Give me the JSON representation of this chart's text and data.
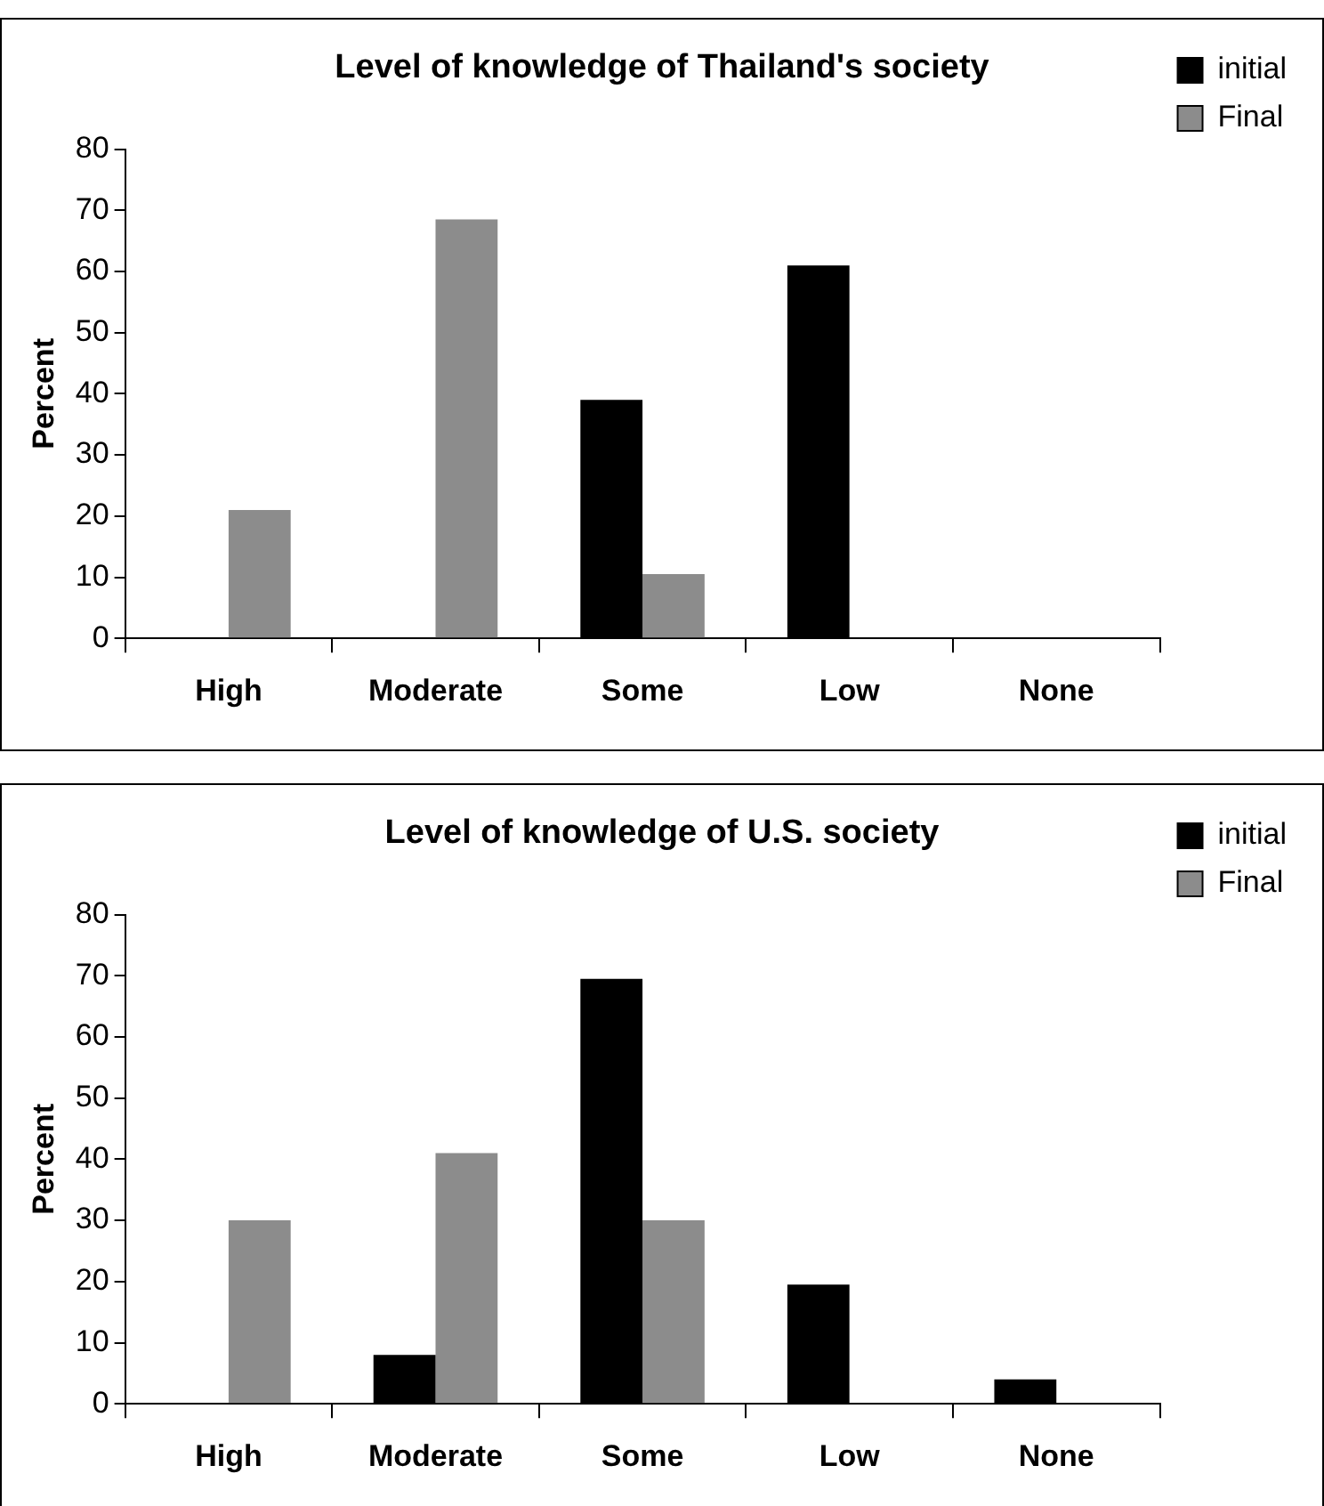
{
  "chart_data": [
    {
      "type": "bar",
      "title": "Level of knowledge of Thailand's society",
      "ylabel": "Percent",
      "categories": [
        "High",
        "Moderate",
        "Some",
        "Low",
        "None"
      ],
      "series": [
        {
          "name": "initial",
          "color": "#000000",
          "values": [
            0,
            0,
            39,
            61,
            0
          ]
        },
        {
          "name": "Final",
          "color": "#8c8c8c",
          "values": [
            21,
            68.5,
            10.5,
            0,
            0
          ]
        }
      ],
      "ylim": [
        0,
        80
      ],
      "yticks": [
        0,
        10,
        20,
        30,
        40,
        50,
        60,
        70,
        80
      ],
      "grid": false,
      "legend": "top right"
    },
    {
      "type": "bar",
      "title": "Level of knowledge of U.S. society",
      "ylabel": "Percent",
      "categories": [
        "High",
        "Moderate",
        "Some",
        "Low",
        "None"
      ],
      "series": [
        {
          "name": "initial",
          "color": "#000000",
          "values": [
            0,
            8,
            69.5,
            19.5,
            4
          ]
        },
        {
          "name": "Final",
          "color": "#8c8c8c",
          "values": [
            30,
            41,
            30,
            0,
            0
          ]
        }
      ],
      "ylim": [
        0,
        80
      ],
      "yticks": [
        0,
        10,
        20,
        30,
        40,
        50,
        60,
        70,
        80
      ],
      "grid": false,
      "legend": "top right"
    }
  ]
}
